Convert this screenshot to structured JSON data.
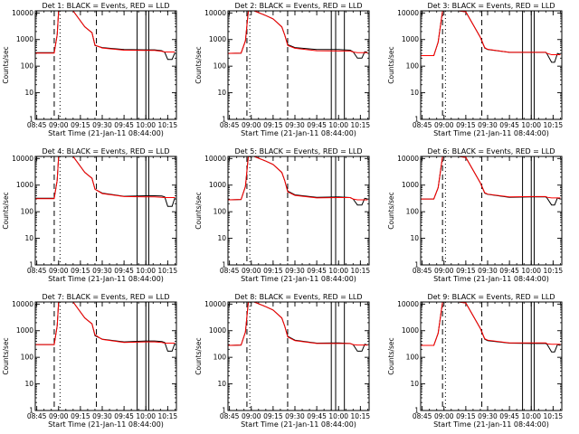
{
  "figure": {
    "colors": {
      "events": "#000000",
      "lld": "#ff0000",
      "background": "#ffffff"
    }
  },
  "chart_data": [
    {
      "type": "line",
      "title": "Det 1: BLACK = Events, RED = LLD",
      "xlabel": "Start Time (21-Jan-11 08:44:00)",
      "ylabel": "Counts/sec",
      "yscale": "log",
      "ylim": [
        1,
        12000
      ],
      "xlim_hours": [
        8.733,
        10.35
      ],
      "x_ticks": [
        "08:45",
        "09:00",
        "09:15",
        "09:30",
        "09:45",
        "10:00",
        "10:15"
      ],
      "y_ticks": [
        "1",
        "10",
        "100",
        "1000",
        "10000"
      ],
      "grid": false,
      "x": [
        "08:44",
        "08:57",
        "08:59",
        "09:00",
        "09:10",
        "09:18",
        "09:23",
        "09:25",
        "09:30",
        "09:45",
        "10:00",
        "10:06",
        "10:11",
        "10:13",
        "10:15",
        "10:18",
        "10:20"
      ],
      "series": [
        {
          "name": "Events",
          "color": "#000000",
          "values": [
            320,
            320,
            1500,
            12000,
            12000,
            3000,
            1800,
            600,
            500,
            420,
            410,
            410,
            380,
            330,
            180,
            180,
            320
          ]
        },
        {
          "name": "LLD",
          "color": "#ff0000",
          "values": [
            310,
            310,
            1500,
            12000,
            12000,
            3000,
            1800,
            620,
            480,
            400,
            390,
            390,
            360,
            340,
            340,
            340,
            340
          ]
        }
      ],
      "markers": {
        "dashed": [
          "08:57",
          "09:26"
        ],
        "dotted": [
          "09:01"
        ],
        "solid": [
          "09:54",
          "10:00",
          "10:02"
        ]
      }
    },
    {
      "type": "line",
      "title": "Det 2: BLACK = Events, RED = LLD",
      "xlabel": "Start Time (21-Jan-11 08:44:00)",
      "ylabel": "Counts/sec",
      "yscale": "log",
      "ylim": [
        1,
        12000
      ],
      "xlim_hours": [
        8.733,
        10.35
      ],
      "x_ticks": [
        "08:45",
        "09:00",
        "09:15",
        "09:30",
        "09:45",
        "10:00",
        "10:15"
      ],
      "y_ticks": [
        "1",
        "10",
        "100",
        "1000",
        "10000"
      ],
      "grid": false,
      "x": [
        "08:44",
        "08:53",
        "08:56",
        "08:58",
        "09:02",
        "09:10",
        "09:15",
        "09:21",
        "09:23",
        "09:25",
        "09:30",
        "09:45",
        "10:00",
        "10:08",
        "10:10",
        "10:13",
        "10:16",
        "10:18",
        "10:20"
      ],
      "series": [
        {
          "name": "Events",
          "color": "#000000",
          "values": [
            300,
            310,
            900,
            12000,
            12000,
            8000,
            6000,
            3000,
            1500,
            650,
            500,
            420,
            420,
            400,
            350,
            200,
            200,
            350,
            330
          ]
        },
        {
          "name": "LLD",
          "color": "#ff0000",
          "values": [
            300,
            310,
            900,
            12000,
            12000,
            8000,
            6000,
            3000,
            1500,
            600,
            470,
            380,
            370,
            370,
            340,
            320,
            320,
            320,
            320
          ]
        }
      ],
      "markers": {
        "dashed": [
          "08:57",
          "09:25"
        ],
        "dotted": [
          "08:59"
        ],
        "solid": [
          "09:55",
          "09:58",
          "10:04"
        ]
      }
    },
    {
      "type": "line",
      "title": "Det 3: BLACK = Events, RED = LLD",
      "xlabel": "Start Time (21-Jan-11 08:44:00)",
      "ylabel": "Counts/sec",
      "yscale": "log",
      "ylim": [
        1,
        12000
      ],
      "xlim_hours": [
        8.733,
        10.35
      ],
      "x_ticks": [
        "08:45",
        "09:00",
        "09:15",
        "09:30",
        "09:45",
        "10:00",
        "10:15"
      ],
      "y_ticks": [
        "1",
        "10",
        "100",
        "1000",
        "10000"
      ],
      "grid": false,
      "x": [
        "08:44",
        "08:53",
        "08:56",
        "08:59",
        "09:02",
        "09:10",
        "09:15",
        "09:25",
        "09:28",
        "09:30",
        "09:45",
        "10:00",
        "10:10",
        "10:11",
        "10:14",
        "10:16",
        "10:18",
        "10:20"
      ],
      "series": [
        {
          "name": "Events",
          "color": "#000000",
          "values": [
            250,
            250,
            800,
            12000,
            12000,
            12000,
            11000,
            1200,
            480,
            420,
            330,
            330,
            330,
            280,
            140,
            140,
            300,
            280
          ]
        },
        {
          "name": "LLD",
          "color": "#ff0000",
          "values": [
            250,
            250,
            800,
            12000,
            12000,
            12000,
            11000,
            1200,
            500,
            430,
            330,
            330,
            330,
            300,
            270,
            270,
            270,
            270
          ]
        }
      ],
      "markers": {
        "dashed": [
          "08:59",
          "09:26"
        ],
        "dotted": [
          "09:01"
        ],
        "solid": [
          "09:54",
          "10:00",
          "10:02"
        ]
      }
    },
    {
      "type": "line",
      "title": "Det 4: BLACK = Events, RED = LLD",
      "xlabel": "Start Time (21-Jan-11 08:44:00)",
      "ylabel": "Counts/sec",
      "yscale": "log",
      "ylim": [
        1,
        12000
      ],
      "xlim_hours": [
        8.733,
        10.35
      ],
      "x_ticks": [
        "08:45",
        "09:00",
        "09:15",
        "09:30",
        "09:45",
        "10:00",
        "10:15"
      ],
      "y_ticks": [
        "1",
        "10",
        "100",
        "1000",
        "10000"
      ],
      "grid": false,
      "x": [
        "08:44",
        "08:57",
        "08:59",
        "09:00",
        "09:10",
        "09:18",
        "09:23",
        "09:25",
        "09:30",
        "09:45",
        "10:00",
        "10:06",
        "10:11",
        "10:13",
        "10:15",
        "10:18",
        "10:20"
      ],
      "series": [
        {
          "name": "Events",
          "color": "#000000",
          "values": [
            320,
            320,
            1500,
            12000,
            12000,
            3000,
            1800,
            700,
            500,
            380,
            400,
            400,
            390,
            360,
            160,
            160,
            340
          ]
        },
        {
          "name": "LLD",
          "color": "#ff0000",
          "values": [
            310,
            310,
            1500,
            12000,
            12000,
            3000,
            1800,
            700,
            480,
            370,
            360,
            360,
            350,
            340,
            340,
            340,
            340
          ]
        }
      ],
      "markers": {
        "dashed": [
          "08:57",
          "09:26"
        ],
        "dotted": [
          "09:01"
        ],
        "solid": [
          "09:54",
          "10:00",
          "10:02"
        ]
      }
    },
    {
      "type": "line",
      "title": "Det 5: BLACK = Events, RED = LLD",
      "xlabel": "Start Time (21-Jan-11 08:44:00)",
      "ylabel": "Counts/sec",
      "yscale": "log",
      "ylim": [
        1,
        12000
      ],
      "xlim_hours": [
        8.733,
        10.35
      ],
      "x_ticks": [
        "08:45",
        "09:00",
        "09:15",
        "09:30",
        "09:45",
        "10:00",
        "10:15"
      ],
      "y_ticks": [
        "1",
        "10",
        "100",
        "1000",
        "10000"
      ],
      "grid": false,
      "x": [
        "08:44",
        "08:53",
        "08:56",
        "08:58",
        "09:02",
        "09:10",
        "09:15",
        "09:21",
        "09:23",
        "09:25",
        "09:30",
        "09:45",
        "10:00",
        "10:08",
        "10:10",
        "10:13",
        "10:16",
        "10:18",
        "10:20"
      ],
      "series": [
        {
          "name": "Events",
          "color": "#000000",
          "values": [
            280,
            290,
            900,
            12000,
            12000,
            8000,
            6000,
            3000,
            1500,
            600,
            430,
            350,
            360,
            340,
            300,
            180,
            180,
            320,
            300
          ]
        },
        {
          "name": "LLD",
          "color": "#ff0000",
          "values": [
            280,
            290,
            900,
            12000,
            12000,
            8000,
            6000,
            3000,
            1500,
            560,
            410,
            330,
            340,
            340,
            300,
            280,
            280,
            280,
            280
          ]
        }
      ],
      "markers": {
        "dashed": [
          "08:57",
          "09:25"
        ],
        "dotted": [
          "08:59"
        ],
        "solid": [
          "09:55",
          "09:58",
          "10:04"
        ]
      }
    },
    {
      "type": "line",
      "title": "Det 6: BLACK = Events, RED = LLD",
      "xlabel": "Start Time (21-Jan-11 08:44:00)",
      "ylabel": "Counts/sec",
      "yscale": "log",
      "ylim": [
        1,
        12000
      ],
      "xlim_hours": [
        8.733,
        10.35
      ],
      "x_ticks": [
        "08:45",
        "09:00",
        "09:15",
        "09:30",
        "09:45",
        "10:00",
        "10:15"
      ],
      "y_ticks": [
        "1",
        "10",
        "100",
        "1000",
        "10000"
      ],
      "grid": false,
      "x": [
        "08:44",
        "08:53",
        "08:56",
        "08:59",
        "09:02",
        "09:10",
        "09:15",
        "09:25",
        "09:28",
        "09:30",
        "09:45",
        "10:00",
        "10:10",
        "10:11",
        "10:14",
        "10:16",
        "10:18",
        "10:20"
      ],
      "series": [
        {
          "name": "Events",
          "color": "#000000",
          "values": [
            300,
            300,
            800,
            12000,
            12000,
            12000,
            11000,
            1200,
            500,
            450,
            350,
            360,
            360,
            320,
            180,
            180,
            330,
            300
          ]
        },
        {
          "name": "LLD",
          "color": "#ff0000",
          "values": [
            300,
            300,
            800,
            12000,
            12000,
            12000,
            11000,
            1200,
            520,
            460,
            360,
            370,
            370,
            350,
            330,
            330,
            330,
            330
          ]
        }
      ],
      "markers": {
        "dashed": [
          "08:59",
          "09:26"
        ],
        "dotted": [
          "09:01"
        ],
        "solid": [
          "09:54",
          "10:00",
          "10:02"
        ]
      }
    },
    {
      "type": "line",
      "title": "Det 7: BLACK = Events, RED = LLD",
      "xlabel": "Start Time (21-Jan-11 08:44:00)",
      "ylabel": "Counts/sec",
      "yscale": "log",
      "ylim": [
        1,
        12000
      ],
      "xlim_hours": [
        8.733,
        10.35
      ],
      "x_ticks": [
        "08:45",
        "09:00",
        "09:15",
        "09:30",
        "09:45",
        "10:00",
        "10:15"
      ],
      "y_ticks": [
        "1",
        "10",
        "100",
        "1000",
        "10000"
      ],
      "grid": false,
      "x": [
        "08:44",
        "08:57",
        "08:59",
        "09:00",
        "09:10",
        "09:18",
        "09:23",
        "09:25",
        "09:30",
        "09:45",
        "10:00",
        "10:06",
        "10:11",
        "10:13",
        "10:15",
        "10:18",
        "10:20"
      ],
      "series": [
        {
          "name": "Events",
          "color": "#000000",
          "values": [
            300,
            300,
            1500,
            12000,
            12000,
            3000,
            1800,
            650,
            480,
            380,
            410,
            410,
            390,
            360,
            170,
            170,
            340
          ]
        },
        {
          "name": "LLD",
          "color": "#ff0000",
          "values": [
            300,
            300,
            1500,
            12000,
            12000,
            3000,
            1800,
            700,
            470,
            360,
            380,
            380,
            360,
            340,
            340,
            340,
            340
          ]
        }
      ],
      "markers": {
        "dashed": [
          "08:57",
          "09:26"
        ],
        "dotted": [
          "09:01"
        ],
        "solid": [
          "09:54",
          "10:00",
          "10:02"
        ]
      }
    },
    {
      "type": "line",
      "title": "Det 8: BLACK = Events, RED = LLD",
      "xlabel": "Start Time (21-Jan-11 08:44:00)",
      "ylabel": "Counts/sec",
      "yscale": "log",
      "ylim": [
        1,
        12000
      ],
      "xlim_hours": [
        8.733,
        10.35
      ],
      "x_ticks": [
        "08:45",
        "09:00",
        "09:15",
        "09:30",
        "09:45",
        "10:00",
        "10:15"
      ],
      "y_ticks": [
        "1",
        "10",
        "100",
        "1000",
        "10000"
      ],
      "grid": false,
      "x": [
        "08:44",
        "08:53",
        "08:56",
        "08:58",
        "09:02",
        "09:10",
        "09:15",
        "09:21",
        "09:23",
        "09:25",
        "09:30",
        "09:45",
        "10:00",
        "10:08",
        "10:10",
        "10:13",
        "10:16",
        "10:18",
        "10:20"
      ],
      "series": [
        {
          "name": "Events",
          "color": "#000000",
          "values": [
            280,
            290,
            900,
            12000,
            12000,
            8000,
            6000,
            3000,
            1500,
            620,
            440,
            340,
            350,
            330,
            300,
            170,
            170,
            310,
            290
          ]
        },
        {
          "name": "LLD",
          "color": "#ff0000",
          "values": [
            280,
            290,
            900,
            12000,
            12000,
            8000,
            6000,
            3000,
            1500,
            580,
            420,
            330,
            330,
            330,
            300,
            290,
            290,
            290,
            290
          ]
        }
      ],
      "markers": {
        "dashed": [
          "08:57",
          "09:25"
        ],
        "dotted": [
          "08:59"
        ],
        "solid": [
          "09:55",
          "09:58",
          "10:04"
        ]
      }
    },
    {
      "type": "line",
      "title": "Det 9: BLACK = Events, RED = LLD",
      "xlabel": "Start Time (21-Jan-11 08:44:00)",
      "ylabel": "Counts/sec",
      "yscale": "log",
      "ylim": [
        1,
        12000
      ],
      "xlim_hours": [
        8.733,
        10.35
      ],
      "x_ticks": [
        "08:45",
        "09:00",
        "09:15",
        "09:30",
        "09:45",
        "10:00",
        "10:15"
      ],
      "y_ticks": [
        "1",
        "10",
        "100",
        "1000",
        "10000"
      ],
      "grid": false,
      "x": [
        "08:44",
        "08:53",
        "08:56",
        "08:59",
        "09:02",
        "09:10",
        "09:15",
        "09:25",
        "09:28",
        "09:30",
        "09:45",
        "10:00",
        "10:10",
        "10:11",
        "10:14",
        "10:16",
        "10:18",
        "10:20"
      ],
      "series": [
        {
          "name": "Events",
          "color": "#000000",
          "values": [
            280,
            280,
            800,
            12000,
            12000,
            12000,
            11000,
            1200,
            480,
            420,
            340,
            330,
            330,
            300,
            160,
            160,
            300,
            280
          ]
        },
        {
          "name": "LLD",
          "color": "#ff0000",
          "values": [
            280,
            280,
            800,
            12000,
            12000,
            12000,
            11000,
            1200,
            500,
            440,
            350,
            350,
            350,
            320,
            310,
            310,
            310,
            310
          ]
        }
      ],
      "markers": {
        "dashed": [
          "08:59",
          "09:26"
        ],
        "dotted": [
          "09:01"
        ],
        "solid": [
          "09:54",
          "10:00",
          "10:02"
        ]
      }
    }
  ]
}
